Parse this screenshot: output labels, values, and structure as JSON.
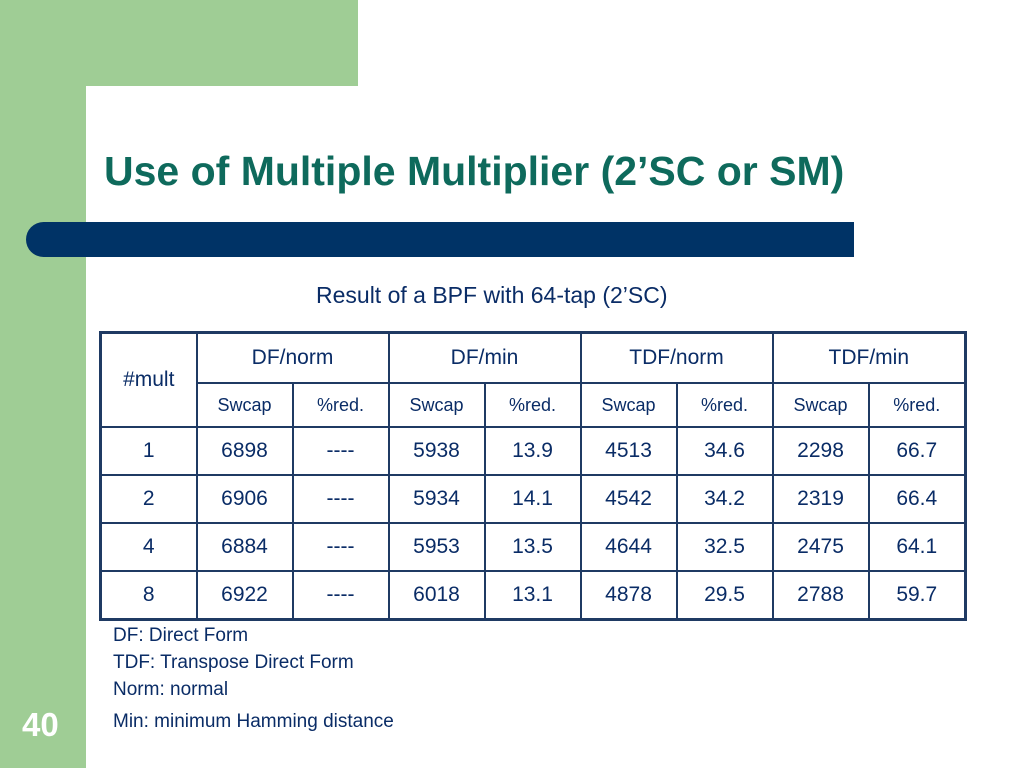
{
  "slide": {
    "title": "Use of  Multiple Multiplier (2’SC or SM)",
    "subtitle": "Result of a BPF with 64-tap (2’SC)",
    "page_number": "40",
    "colors": {
      "green": "#9fcd95",
      "navy_bar": "#003366",
      "title": "#0e6a5c",
      "text": "#0a2c66"
    }
  },
  "table": {
    "mult_header": "#mult",
    "groups": [
      "DF/norm",
      "DF/min",
      "TDF/norm",
      "TDF/min"
    ],
    "sub_headers": [
      "Swcap",
      "%red.",
      "Swcap",
      "%red.",
      "Swcap",
      "%red.",
      "Swcap",
      "%red."
    ],
    "rows": [
      [
        "1",
        "6898",
        "----",
        "5938",
        "13.9",
        "4513",
        "34.6",
        "2298",
        "66.7"
      ],
      [
        "2",
        "6906",
        "----",
        "5934",
        "14.1",
        "4542",
        "34.2",
        "2319",
        "66.4"
      ],
      [
        "4",
        "6884",
        "----",
        "5953",
        "13.5",
        "4644",
        "32.5",
        "2475",
        "64.1"
      ],
      [
        "8",
        "6922",
        "----",
        "6018",
        "13.1",
        "4878",
        "29.5",
        "2788",
        "59.7"
      ]
    ]
  },
  "notes": [
    "DF: Direct Form",
    "TDF: Transpose Direct Form",
    "Norm: normal",
    "Min: minimum Hamming distance"
  ]
}
